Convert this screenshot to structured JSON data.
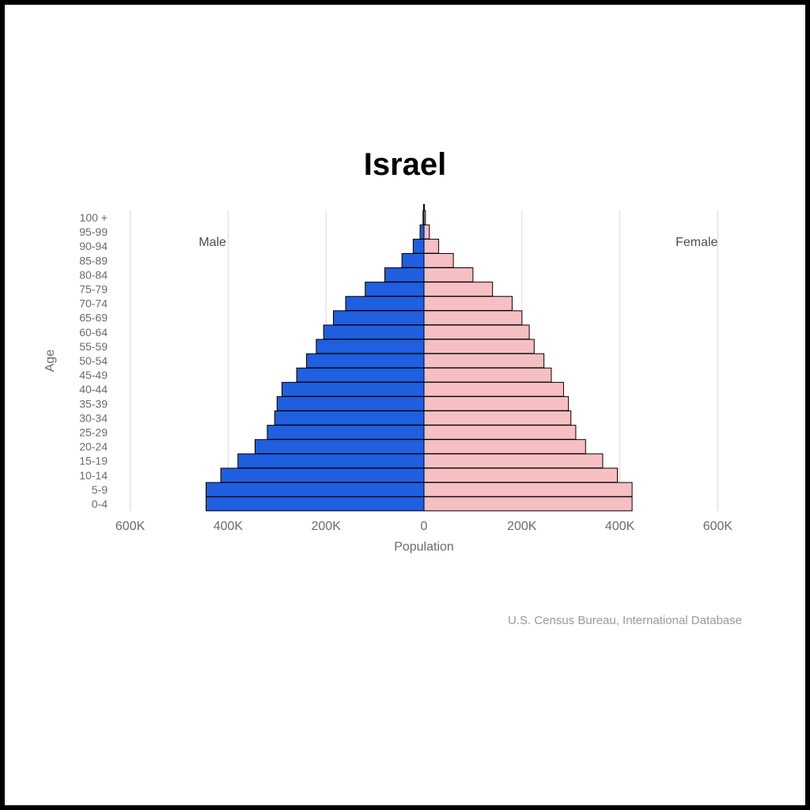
{
  "title": "Israel",
  "source": "U.S. Census Bureau, International Database",
  "chart": {
    "type": "population-pyramid",
    "y_axis_label": "Age",
    "x_axis_label": "Population",
    "male_label": "Male",
    "female_label": "Female",
    "male_color": "#1f5fe0",
    "female_color": "#f6bfc2",
    "bar_border_color": "#000000",
    "grid_color": "#d9d9d9",
    "axis_text_color": "#6b6b6b",
    "background_color": "#ffffff",
    "x_ticks": [
      -600,
      -400,
      -200,
      0,
      200,
      400,
      600
    ],
    "x_tick_labels": [
      "600K",
      "400K",
      "200K",
      "0",
      "200K",
      "400K",
      "600K"
    ],
    "xlim": [
      -630,
      630
    ],
    "age_labels": [
      "0-4",
      "5-9",
      "10-14",
      "15-19",
      "20-24",
      "25-29",
      "30-34",
      "35-39",
      "40-44",
      "45-49",
      "50-54",
      "55-59",
      "60-64",
      "65-69",
      "70-74",
      "75-79",
      "80-84",
      "85-89",
      "90-94",
      "95-99",
      "100 +"
    ],
    "male_values": [
      445,
      445,
      415,
      380,
      345,
      320,
      305,
      300,
      290,
      260,
      240,
      220,
      205,
      185,
      160,
      120,
      80,
      45,
      22,
      8,
      2
    ],
    "female_values": [
      425,
      425,
      395,
      365,
      330,
      310,
      300,
      295,
      285,
      260,
      245,
      225,
      215,
      200,
      180,
      140,
      100,
      60,
      30,
      11,
      3
    ],
    "bar_height_ratio": 0.98,
    "title_fontsize": 40,
    "title_fontweight": "700",
    "label_fontsize": 16,
    "tick_fontsize_y": 14,
    "tick_fontsize_x": 16
  }
}
